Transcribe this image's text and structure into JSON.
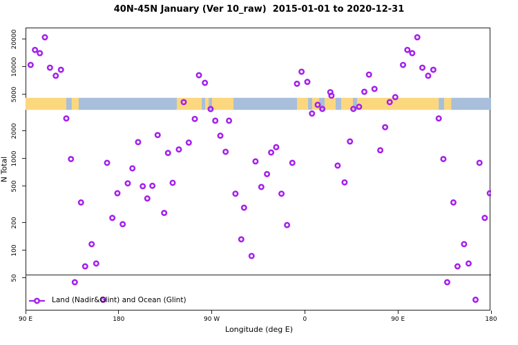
{
  "title": "40N-45N January (Ver 10_raw)  2015-01-01 to 2020-12-31",
  "legend": {
    "label": "Land (Nadir&Glint) and Ocean (Glint)"
  },
  "colors": {
    "marker": "#A420EC",
    "land": "#FBD77E",
    "ocean": "#A8BEDA",
    "axis": "#1f1f1f"
  },
  "chart_data": {
    "type": "scatter",
    "title": "40N-45N January (Ver 10_raw)  2015-01-01 to 2020-12-31",
    "xlabel": "Longitude (deg E)",
    "ylabel": "N Total",
    "y_scale": "log",
    "ylim": [
      22,
      26500
    ],
    "y_ticks": [
      50,
      100,
      200,
      500,
      1000,
      2000,
      5000,
      10000,
      20000
    ],
    "x_axis_note": "axis spans 450 deg eastward; deg 0 = 90E; ticks every 90 deg; points with deg < 90 are drawn again at deg+360",
    "x_ticks": [
      {
        "deg": 0,
        "label": "90 E"
      },
      {
        "deg": 90,
        "label": "180"
      },
      {
        "deg": 180,
        "label": "90 W"
      },
      {
        "deg": 270,
        "label": "0"
      },
      {
        "deg": 360,
        "label": "90 E"
      },
      {
        "deg": 450,
        "label": "180"
      }
    ],
    "map_band": {
      "n_top": 4600,
      "n_bottom": 3400,
      "segments": [
        {
          "from_deg": 0.0,
          "to_deg": 39.4,
          "type": "land"
        },
        {
          "from_deg": 39.4,
          "to_deg": 44.7,
          "type": "ocean"
        },
        {
          "from_deg": 44.7,
          "to_deg": 51.4,
          "type": "land"
        },
        {
          "from_deg": 51.4,
          "to_deg": 146.2,
          "type": "ocean"
        },
        {
          "from_deg": 146.2,
          "to_deg": 170.3,
          "type": "land"
        },
        {
          "from_deg": 170.3,
          "to_deg": 173.6,
          "type": "ocean"
        },
        {
          "from_deg": 173.6,
          "to_deg": 177.0,
          "type": "land"
        },
        {
          "from_deg": 177.0,
          "to_deg": 180.3,
          "type": "ocean"
        },
        {
          "from_deg": 180.3,
          "to_deg": 201.0,
          "type": "land"
        },
        {
          "from_deg": 201.0,
          "to_deg": 262.4,
          "type": "ocean"
        },
        {
          "from_deg": 262.4,
          "to_deg": 273.1,
          "type": "land"
        },
        {
          "from_deg": 273.1,
          "to_deg": 277.1,
          "type": "ocean"
        },
        {
          "from_deg": 277.1,
          "to_deg": 283.8,
          "type": "land"
        },
        {
          "from_deg": 283.8,
          "to_deg": 289.1,
          "type": "ocean"
        },
        {
          "from_deg": 289.1,
          "to_deg": 299.8,
          "type": "land"
        },
        {
          "from_deg": 299.8,
          "to_deg": 305.1,
          "type": "ocean"
        },
        {
          "from_deg": 305.1,
          "to_deg": 316.5,
          "type": "land"
        },
        {
          "from_deg": 316.5,
          "to_deg": 320.5,
          "type": "ocean"
        },
        {
          "from_deg": 320.5,
          "to_deg": 399.4,
          "type": "land"
        },
        {
          "from_deg": 399.4,
          "to_deg": 404.7,
          "type": "ocean"
        },
        {
          "from_deg": 404.7,
          "to_deg": 411.4,
          "type": "land"
        },
        {
          "from_deg": 411.4,
          "to_deg": 450.0,
          "type": "ocean"
        }
      ]
    },
    "points": [
      {
        "deg": 4.9,
        "n": 10500
      },
      {
        "deg": 9.1,
        "n": 15300
      },
      {
        "deg": 13.8,
        "n": 14100
      },
      {
        "deg": 18.7,
        "n": 21000
      },
      {
        "deg": 23.6,
        "n": 9800
      },
      {
        "deg": 29.2,
        "n": 8000
      },
      {
        "deg": 34.2,
        "n": 9300
      },
      {
        "deg": 39.4,
        "n": 2740
      },
      {
        "deg": 43.9,
        "n": 990
      },
      {
        "deg": 47.6,
        "n": 45
      },
      {
        "deg": 53.6,
        "n": 333
      },
      {
        "deg": 57.6,
        "n": 67
      },
      {
        "deg": 63.9,
        "n": 117
      },
      {
        "deg": 68.3,
        "n": 72
      },
      {
        "deg": 75.0,
        "n": 29
      },
      {
        "deg": 78.8,
        "n": 900
      },
      {
        "deg": 83.9,
        "n": 226
      },
      {
        "deg": 88.8,
        "n": 420
      },
      {
        "deg": 93.9,
        "n": 193
      },
      {
        "deg": 98.8,
        "n": 538
      },
      {
        "deg": 103.3,
        "n": 784
      },
      {
        "deg": 108.8,
        "n": 1513
      },
      {
        "deg": 113.3,
        "n": 500
      },
      {
        "deg": 117.7,
        "n": 368
      },
      {
        "deg": 122.6,
        "n": 506
      },
      {
        "deg": 127.7,
        "n": 1807
      },
      {
        "deg": 134.0,
        "n": 256
      },
      {
        "deg": 137.7,
        "n": 1153
      },
      {
        "deg": 142.2,
        "n": 545
      },
      {
        "deg": 148.2,
        "n": 1259
      },
      {
        "deg": 152.9,
        "n": 4130
      },
      {
        "deg": 157.8,
        "n": 1496
      },
      {
        "deg": 163.6,
        "n": 2710
      },
      {
        "deg": 167.6,
        "n": 8110
      },
      {
        "deg": 173.4,
        "n": 6700
      },
      {
        "deg": 178.9,
        "n": 3470
      },
      {
        "deg": 183.4,
        "n": 2590
      },
      {
        "deg": 188.3,
        "n": 1778
      },
      {
        "deg": 193.4,
        "n": 1188
      },
      {
        "deg": 196.7,
        "n": 2590
      },
      {
        "deg": 202.9,
        "n": 415
      },
      {
        "deg": 208.5,
        "n": 132
      },
      {
        "deg": 211.2,
        "n": 292
      },
      {
        "deg": 218.5,
        "n": 87
      },
      {
        "deg": 222.3,
        "n": 933
      },
      {
        "deg": 227.9,
        "n": 491
      },
      {
        "deg": 233.4,
        "n": 679
      },
      {
        "deg": 237.4,
        "n": 1167
      },
      {
        "deg": 242.3,
        "n": 1333
      },
      {
        "deg": 247.4,
        "n": 415
      },
      {
        "deg": 252.8,
        "n": 189
      },
      {
        "deg": 257.9,
        "n": 900
      },
      {
        "deg": 262.4,
        "n": 6550
      },
      {
        "deg": 266.8,
        "n": 8850
      },
      {
        "deg": 272.4,
        "n": 6860
      },
      {
        "deg": 276.9,
        "n": 3100
      },
      {
        "deg": 282.4,
        "n": 3860
      },
      {
        "deg": 286.9,
        "n": 3480
      },
      {
        "deg": 294.6,
        "n": 5300
      },
      {
        "deg": 295.7,
        "n": 4860
      },
      {
        "deg": 301.7,
        "n": 840
      },
      {
        "deg": 308.4,
        "n": 551
      },
      {
        "deg": 313.6,
        "n": 1538
      },
      {
        "deg": 316.9,
        "n": 3480
      },
      {
        "deg": 322.4,
        "n": 3673
      },
      {
        "deg": 327.5,
        "n": 5350
      },
      {
        "deg": 332.0,
        "n": 8240
      },
      {
        "deg": 337.3,
        "n": 5750
      },
      {
        "deg": 342.9,
        "n": 1233
      },
      {
        "deg": 347.6,
        "n": 2200
      },
      {
        "deg": 352.0,
        "n": 4130
      },
      {
        "deg": 357.4,
        "n": 4680
      }
    ]
  }
}
